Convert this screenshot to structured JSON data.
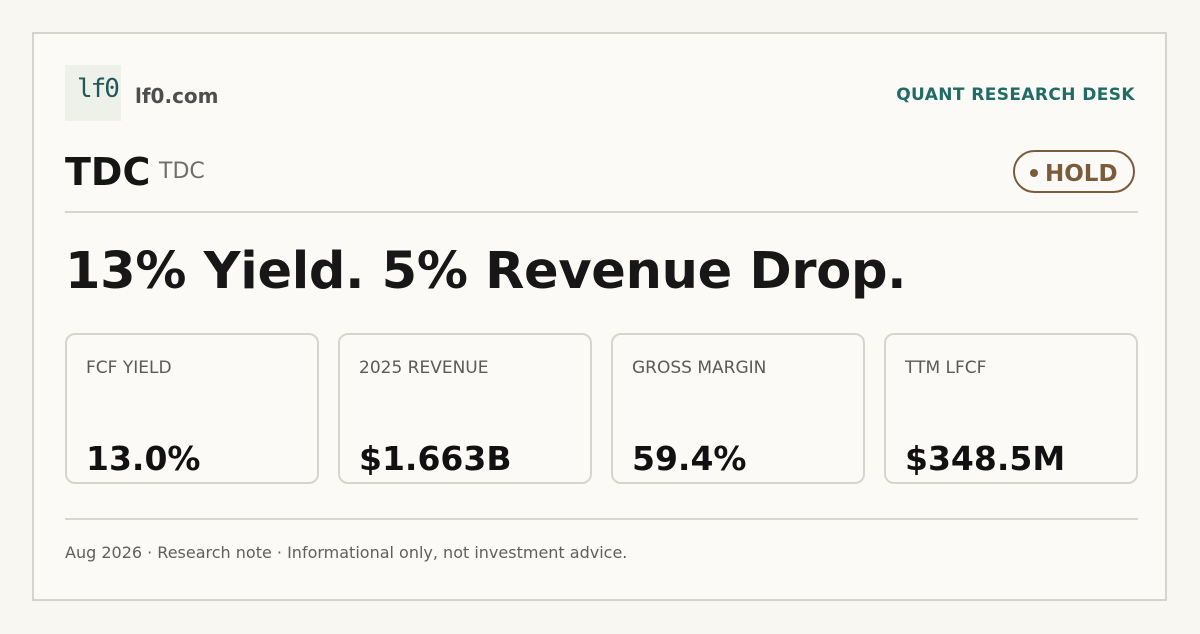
{
  "brand": {
    "logo_text": "lf0",
    "domain": "lf0.com",
    "desk": "QUANT RESEARCH DESK"
  },
  "ticker": {
    "symbol": "TDC",
    "subtitle": "TDC",
    "rating": "HOLD"
  },
  "headline": "13% Yield. 5% Revenue Drop.",
  "metrics": [
    {
      "label": "FCF YIELD",
      "value": "13.0%"
    },
    {
      "label": "2025 REVENUE",
      "value": "$1.663B"
    },
    {
      "label": "GROSS MARGIN",
      "value": "59.4%"
    },
    {
      "label": "TTM LFCF",
      "value": "$348.5M"
    }
  ],
  "footer": "Aug 2026 · Research note · Informational only, not investment advice.",
  "colors": {
    "background": "#f8f7f2",
    "card": "#fbfaf6",
    "accent": "#1f6b65",
    "hold": "#7a5b3a",
    "text": "#171717"
  }
}
